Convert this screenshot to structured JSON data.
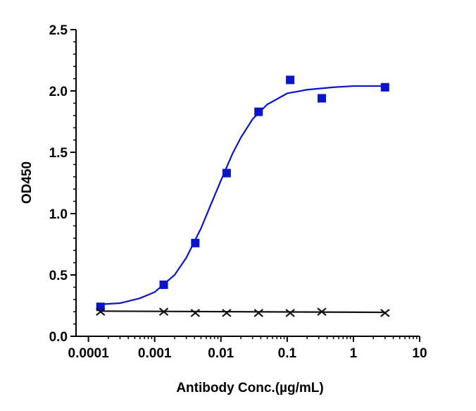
{
  "chart_data": {
    "type": "scatter",
    "x_label": "Antibody Conc.(µg/mL)",
    "y_label": "OD450",
    "xscale": "log",
    "xlim": [
      6.5e-05,
      10
    ],
    "xticks": [
      0.0001,
      0.001,
      0.01,
      0.1,
      1,
      10
    ],
    "ylim": [
      0,
      2.5
    ],
    "yticks": [
      {
        "value": 0,
        "label": "0.0"
      },
      0.5,
      {
        "value": 1,
        "label": "1.0"
      },
      1.5,
      {
        "value": 2,
        "label": "2.0"
      },
      2.5
    ],
    "series": [
      {
        "color": "#0a14c8",
        "marker": "square",
        "x": [
          0.000152,
          0.00137,
          0.0041,
          0.0122,
          0.037,
          0.111,
          0.333,
          3
        ],
        "values": [
          0.24,
          0.42,
          0.76,
          1.33,
          1.83,
          2.09,
          1.94,
          2.03
        ]
      },
      {
        "color": "#111111",
        "marker": "x",
        "x": [
          0.000152,
          0.00137,
          0.0041,
          0.0122,
          0.037,
          0.111,
          0.333,
          3
        ],
        "values": [
          0.2,
          0.2,
          0.19,
          0.19,
          0.19,
          0.19,
          0.2,
          0.19
        ]
      }
    ],
    "curves": [
      {
        "color": "#0a14c8",
        "x": [
          0.00015,
          0.0003,
          0.0006,
          0.001,
          0.002,
          0.003,
          0.005,
          0.007,
          0.01,
          0.015,
          0.02,
          0.03,
          0.05,
          0.1,
          0.2,
          0.5,
          1,
          3
        ],
        "values": [
          0.26,
          0.27,
          0.31,
          0.36,
          0.5,
          0.64,
          0.88,
          1.07,
          1.27,
          1.49,
          1.62,
          1.77,
          1.89,
          1.98,
          2.01,
          2.03,
          2.04,
          2.04
        ]
      },
      {
        "color": "#111111",
        "x": [
          0.00015,
          3
        ],
        "values": [
          0.205,
          0.195
        ]
      }
    ]
  }
}
